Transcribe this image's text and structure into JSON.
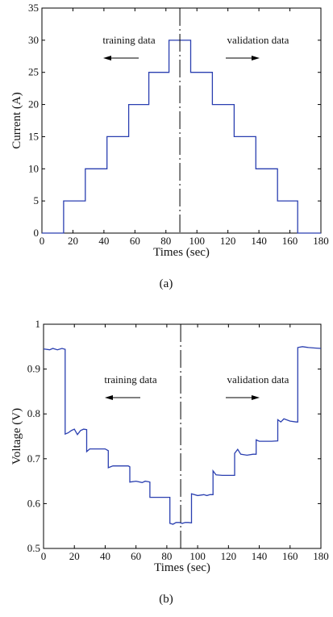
{
  "chart_data": [
    {
      "type": "line",
      "caption": "(a)",
      "xlabel": "Times (sec)",
      "ylabel": "Current (A)",
      "xlim": [
        0,
        180
      ],
      "ylim": [
        0,
        35
      ],
      "xticks": [
        0,
        20,
        40,
        60,
        80,
        100,
        120,
        140,
        160,
        180
      ],
      "yticks": [
        0,
        5,
        10,
        15,
        20,
        25,
        30,
        35
      ],
      "grid": false,
      "series_color": "#2a3fb0",
      "divider_x": 89,
      "annotations": [
        {
          "text": "training data",
          "direction": "left"
        },
        {
          "text": "validation data",
          "direction": "right"
        }
      ],
      "series": [
        {
          "x": [
            0,
            14,
            14,
            28,
            28,
            42,
            42,
            56,
            56,
            69,
            69,
            82,
            82,
            96,
            96,
            110,
            110,
            124,
            124,
            138,
            138,
            152,
            152,
            165,
            165,
            180
          ],
          "y": [
            0,
            0,
            5,
            5,
            10,
            10,
            15,
            15,
            20,
            20,
            25,
            25,
            30,
            30,
            25,
            25,
            20,
            20,
            15,
            15,
            10,
            10,
            5,
            5,
            0,
            0
          ]
        }
      ]
    },
    {
      "type": "line",
      "caption": "(b)",
      "xlabel": "Times (sec)",
      "ylabel": "Voltage (V)",
      "xlim": [
        0,
        180
      ],
      "ylim": [
        0.5,
        1.0
      ],
      "xticks": [
        0,
        20,
        40,
        60,
        80,
        100,
        120,
        140,
        160,
        180
      ],
      "yticks": [
        0.5,
        0.6,
        0.7,
        0.8,
        0.9,
        1
      ],
      "grid": false,
      "series_color": "#2a3fb0",
      "divider_x": 89,
      "annotations": [
        {
          "text": "training data",
          "direction": "left"
        },
        {
          "text": "validation data",
          "direction": "right"
        }
      ],
      "series": [
        {
          "x": [
            0,
            4,
            6,
            9,
            12,
            14,
            14,
            16,
            18,
            20,
            22,
            24,
            26,
            28,
            28,
            30,
            33,
            36,
            40,
            42,
            42,
            45,
            50,
            55,
            56,
            56,
            60,
            64,
            66,
            68,
            69,
            69,
            73,
            78,
            82,
            82,
            84,
            86,
            88,
            90,
            92,
            94,
            96,
            96,
            100,
            104,
            106,
            108,
            110,
            110,
            112,
            116,
            120,
            124,
            124,
            126,
            128,
            132,
            136,
            138,
            138,
            140,
            144,
            148,
            152,
            152,
            154,
            156,
            160,
            164,
            165,
            165,
            168,
            172,
            176,
            180
          ],
          "y": [
            0.945,
            0.943,
            0.946,
            0.943,
            0.946,
            0.944,
            0.755,
            0.758,
            0.763,
            0.766,
            0.754,
            0.763,
            0.766,
            0.765,
            0.716,
            0.722,
            0.722,
            0.722,
            0.722,
            0.718,
            0.68,
            0.684,
            0.684,
            0.684,
            0.682,
            0.648,
            0.65,
            0.647,
            0.65,
            0.649,
            0.648,
            0.614,
            0.614,
            0.614,
            0.614,
            0.556,
            0.554,
            0.558,
            0.558,
            0.556,
            0.558,
            0.558,
            0.557,
            0.622,
            0.618,
            0.62,
            0.618,
            0.62,
            0.62,
            0.673,
            0.664,
            0.663,
            0.663,
            0.663,
            0.712,
            0.721,
            0.71,
            0.708,
            0.71,
            0.71,
            0.742,
            0.739,
            0.739,
            0.739,
            0.74,
            0.787,
            0.782,
            0.789,
            0.784,
            0.782,
            0.782,
            0.948,
            0.95,
            0.948,
            0.947,
            0.946
          ]
        }
      ]
    }
  ]
}
